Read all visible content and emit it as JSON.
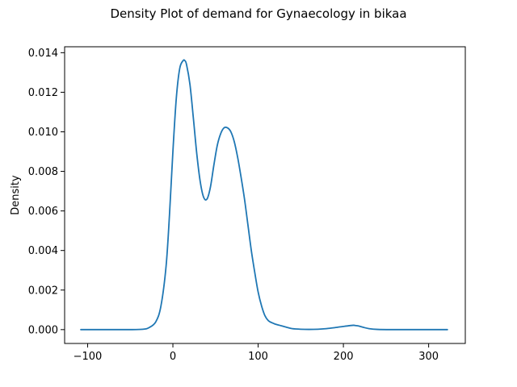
{
  "chart_data": {
    "type": "line",
    "title": "Density Plot of demand for Gynaecology in bikaa",
    "xlabel": "",
    "ylabel": "Density",
    "xlim": [
      -127,
      343
    ],
    "ylim": [
      -0.0007,
      0.0143
    ],
    "xticks": [
      -100,
      0,
      100,
      200,
      300
    ],
    "yticks": [
      0.0,
      0.002,
      0.004,
      0.006,
      0.008,
      0.01,
      0.012,
      0.014
    ],
    "xtick_labels": [
      "−100",
      "0",
      "100",
      "200",
      "300"
    ],
    "ytick_labels": [
      "0.000",
      "0.002",
      "0.004",
      "0.006",
      "0.008",
      "0.010",
      "0.012",
      "0.014"
    ],
    "grid": false,
    "line_color": "#1f77b4",
    "series": [
      {
        "x": [
          -108,
          -80,
          -50,
          -35,
          -28,
          -20,
          -14,
          -8,
          -4,
          0,
          4,
          8,
          12,
          14,
          16,
          20,
          24,
          28,
          32,
          36,
          40,
          44,
          48,
          52,
          56,
          60,
          64,
          68,
          72,
          76,
          80,
          84,
          88,
          92,
          96,
          100,
          104,
          108,
          112,
          116,
          120,
          125,
          130,
          135,
          140,
          150,
          160,
          170,
          180,
          190,
          200,
          207,
          212,
          215,
          218,
          223,
          230,
          240,
          260,
          280,
          300,
          322
        ],
        "y": [
          0.0,
          0.0,
          0.0,
          2e-05,
          0.0001,
          0.0004,
          0.0012,
          0.0032,
          0.0058,
          0.009,
          0.0117,
          0.0132,
          0.0136,
          0.0136,
          0.0134,
          0.0124,
          0.0107,
          0.0089,
          0.0075,
          0.0067,
          0.0066,
          0.0072,
          0.0083,
          0.0093,
          0.0099,
          0.0102,
          0.0102,
          0.01,
          0.0095,
          0.0087,
          0.0077,
          0.0066,
          0.0053,
          0.004,
          0.0029,
          0.0019,
          0.0012,
          0.0007,
          0.00045,
          0.00035,
          0.00028,
          0.00022,
          0.00016,
          0.0001,
          5e-05,
          2e-05,
          1e-05,
          2e-05,
          5e-05,
          0.0001,
          0.00016,
          0.0002,
          0.00022,
          0.0002,
          0.00018,
          0.00012,
          5e-05,
          1e-05,
          0.0,
          0.0,
          0.0,
          0.0
        ]
      }
    ]
  }
}
